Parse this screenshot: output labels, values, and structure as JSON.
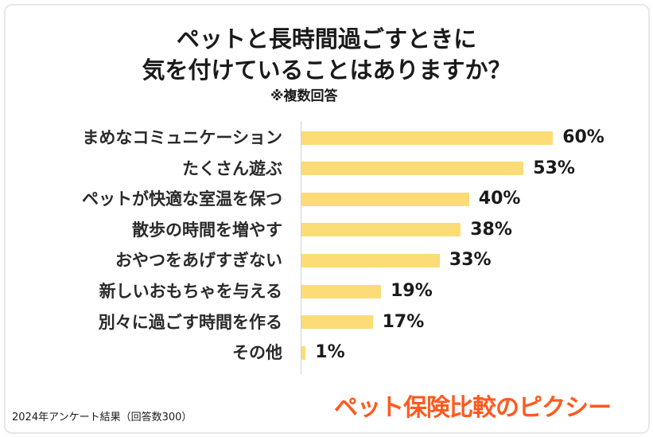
{
  "title_line1": "ペットと長時間過ごすときに",
  "title_line2": "気を付けていることはありますか？",
  "note": "※複数回答",
  "footnote": "2024年アンケート結果（回答数300）",
  "brand": "ペット保険比較のピクシー",
  "colors": {
    "bar": "#fbdc77",
    "brand": "#ff5a1f"
  },
  "chart_data": {
    "type": "bar",
    "orientation": "horizontal",
    "categories": [
      "まめなコミュニケーション",
      "たくさん遊ぶ",
      "ペットが快適な室温を保つ",
      "散歩の時間を増やす",
      "おやつをあげすぎない",
      "新しいおもちゃを与える",
      "別々に過ごす時間を作る",
      "その他"
    ],
    "values": [
      60,
      53,
      40,
      38,
      33,
      19,
      17,
      1
    ],
    "value_labels": [
      "60%",
      "53%",
      "40%",
      "38%",
      "33%",
      "19%",
      "17%",
      "1%"
    ],
    "unit": "%",
    "xlim": [
      0,
      100
    ],
    "grid": false,
    "legend": "none"
  }
}
